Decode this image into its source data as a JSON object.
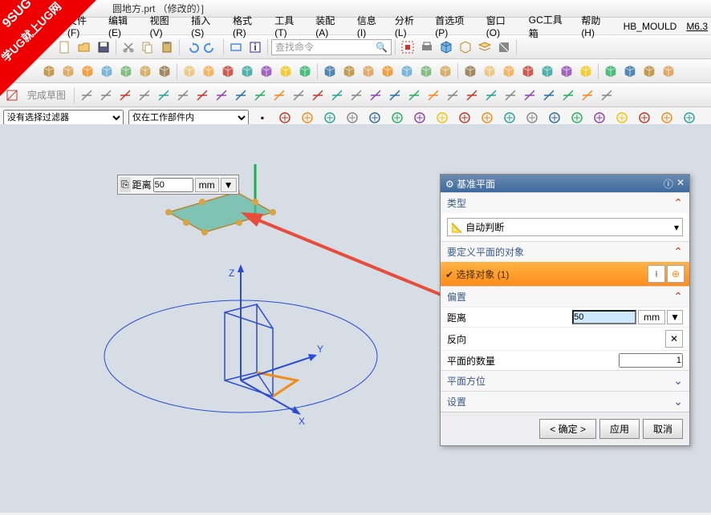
{
  "title": "圆地方.prt （修改的）]",
  "menus": [
    "文件(F)",
    "编辑(E)",
    "视图(V)",
    "插入(S)",
    "格式(R)",
    "工具(T)",
    "装配(A)",
    "信息(I)",
    "分析(L)",
    "首选项(P)",
    "窗口(O)",
    "GC工具箱",
    "帮助(H)",
    "HB_MOULD",
    "M6.3"
  ],
  "search_placeholder": "查找命令",
  "sketch_finish": "完成草图",
  "filter1": "没有选择过滤器",
  "filter2": "仅在工作部件内",
  "float": {
    "label": "距离",
    "value": "50",
    "unit": "mm"
  },
  "dialog": {
    "title": "基准平面",
    "type_section": "类型",
    "type_value": "自动判断",
    "objects_section": "要定义平面的对象",
    "select_label": "选择对象 (1)",
    "offset_section": "偏置",
    "distance_label": "距离",
    "distance_value": "50",
    "distance_unit": "mm",
    "reverse_label": "反向",
    "count_label": "平面的数量",
    "count_value": "1",
    "orient_section": "平面方位",
    "settings_section": "设置",
    "ok": "< 确定 >",
    "apply": "应用",
    "cancel": "取消"
  },
  "axes": {
    "x": "X",
    "y": "Y",
    "z": "Z"
  },
  "watermark_top": "9SUG",
  "watermark_text": "学UG就上UG网",
  "icon_colors": {
    "new": "#ffd27f",
    "open": "#f7c873",
    "save": "#7a7a7a",
    "cut": "#888",
    "copy": "#b89a5a",
    "paste": "#b89a5a",
    "undo": "#4a90d9",
    "redo": "#4a90d9",
    "rect": "#4a90d9",
    "info": "#2a2a8a",
    "cube1": "#8e6f3e",
    "cube2": "#d99a4a",
    "cube3": "#5fa8d3",
    "cube4": "#6bb36b",
    "cube5": "#cfa04a",
    "cube6": "#cfa04a",
    "orange": "#f08c1a",
    "teal": "#2aa198",
    "purple": "#8e44ad",
    "red": "#c0392b",
    "yellow": "#f1c40f",
    "green": "#27ae60",
    "blue": "#2d6ca2"
  }
}
